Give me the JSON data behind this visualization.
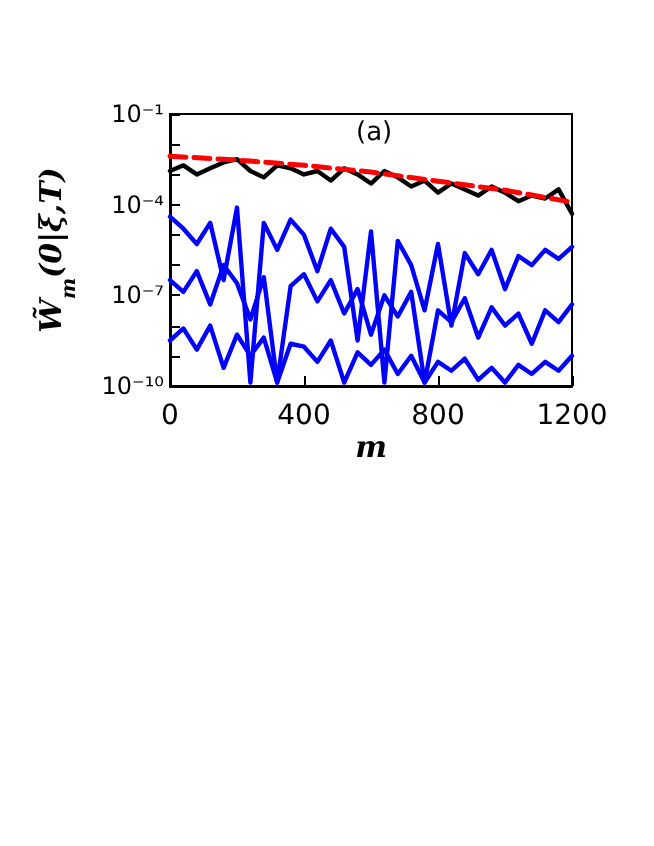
{
  "chart_data": {
    "type": "line",
    "xlabel": "m",
    "ylabel": "W̃$_{m}$(0|ξ,T)",
    "log": "y",
    "grid": false,
    "marker": "none",
    "xlim": [
      0,
      1200
    ],
    "xticks": [
      0,
      400,
      800,
      1200
    ],
    "ylim": [
      1e-10,
      0.1
    ],
    "yticks": [
      {
        "value": 1e-10,
        "label": "10⁻¹⁰"
      },
      {
        "value": 1e-09,
        "label": null
      },
      {
        "value": 1e-08,
        "label": null
      },
      {
        "value": 1e-07,
        "label": "10⁻⁷"
      },
      {
        "value": 1e-06,
        "label": null
      },
      {
        "value": 1e-05,
        "label": null
      },
      {
        "value": 0.0001,
        "label": "10⁻⁴"
      },
      {
        "value": 0.001,
        "label": null
      },
      {
        "value": 0.01,
        "label": null
      },
      {
        "value": 0.1,
        "label": "10⁻¹"
      }
    ],
    "annotations": [
      "(a)"
    ],
    "x": [
      0,
      40,
      80,
      120,
      160,
      200,
      240,
      280,
      320,
      360,
      400,
      440,
      480,
      520,
      560,
      600,
      640,
      680,
      720,
      760,
      800,
      840,
      880,
      920,
      960,
      1000,
      1040,
      1080,
      1120,
      1160,
      1200
    ],
    "series": [
      {
        "color": "#0000ff",
        "line_style": "solid",
        "values": [
          4e-05,
          1.6e-05,
          5e-06,
          2.5e-05,
          3.2e-07,
          8e-05,
          1.3e-10,
          2.5e-05,
          3.2e-06,
          3.2e-05,
          1e-05,
          6.3e-07,
          1.6e-05,
          4e-06,
          3.2e-09,
          1.3e-05,
          1.3e-10,
          6.3e-06,
          1e-06,
          3.2e-08,
          5e-06,
          1e-08,
          2.5e-06,
          5e-07,
          3.2e-06,
          1.6e-07,
          2e-06,
          1e-06,
          3.2e-06,
          1.6e-06,
          4e-06
        ]
      },
      {
        "color": "#0000ff",
        "line_style": "solid",
        "values": [
          3.2e-07,
          1.3e-07,
          6.3e-07,
          5e-08,
          1e-06,
          2.5e-07,
          1.6e-08,
          4e-07,
          1.3e-10,
          2e-07,
          5e-07,
          6.3e-08,
          3.2e-07,
          2.5e-08,
          1.6e-07,
          5e-09,
          1e-07,
          2e-08,
          1.3e-07,
          1.3e-10,
          3.2e-08,
          1.3e-08,
          8e-08,
          4e-09,
          4e-08,
          1e-08,
          2.5e-08,
          2.5e-09,
          3.2e-08,
          1.3e-08,
          5e-08
        ]
      },
      {
        "color": "#0000ff",
        "line_style": "solid",
        "values": [
          3.2e-09,
          8e-09,
          1.6e-09,
          1e-08,
          4e-10,
          5e-09,
          1e-09,
          4e-09,
          1.3e-10,
          2.5e-09,
          2e-09,
          6.3e-10,
          3.2e-09,
          1.3e-10,
          1.3e-09,
          5e-10,
          1.6e-09,
          2.5e-10,
          1e-09,
          1.3e-10,
          6.3e-10,
          3.2e-10,
          8e-10,
          1.6e-10,
          4e-10,
          1.3e-10,
          5e-10,
          2.5e-10,
          6.3e-10,
          3.2e-10,
          1e-09
        ]
      },
      {
        "color": "#000000",
        "line_style": "solid",
        "values": [
          0.0013,
          0.002,
          0.001,
          0.0016,
          0.0025,
          0.0032,
          0.0013,
          0.0008,
          0.002,
          0.0016,
          0.001,
          0.0013,
          0.00063,
          0.0016,
          0.001,
          0.0005,
          0.0013,
          0.0008,
          0.0004,
          0.00063,
          0.00025,
          0.0005,
          0.00032,
          0.0002,
          0.0004,
          0.00025,
          0.00013,
          0.0002,
          0.00016,
          0.00032,
          5e-05
        ]
      },
      {
        "color": "#ff0000",
        "line_style": "dashed",
        "x": [
          0,
          200,
          400,
          600,
          800,
          1000,
          1200
        ],
        "values": [
          0.004,
          0.003,
          0.002,
          0.0012,
          0.0006,
          0.0003,
          0.00012
        ]
      }
    ]
  }
}
